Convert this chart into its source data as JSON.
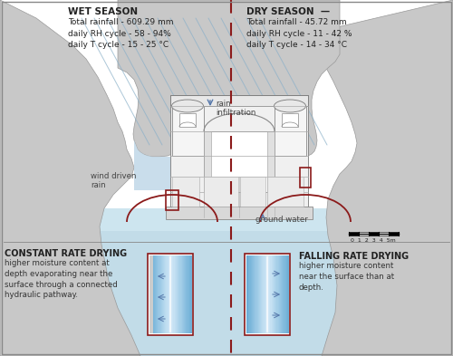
{
  "bg_color": "#ffffff",
  "wet_season_line1": "WET SEASON",
  "wet_season_line2": "Total rainfall - 609.29 mm\ndaily RH cycle - 58 - 94%\ndaily T cycle - 15 - 25 °C",
  "dry_season_line1": "DRY SEASON  —",
  "dry_season_line2": "Total rainfall - 45.72 mm\ndaily RH cycle - 11 - 42 %\ndaily T cycle - 14 - 34 °C",
  "rock_color": "#c8c8c8",
  "rock_edge_color": "#999999",
  "water_color_light": "#c8dfe8",
  "water_color_mid": "#b0cfd8",
  "rain_zone_color": "#c5dcea",
  "rain_line_color": "#8ab0c8",
  "dashed_line_color": "#8b1a1a",
  "box_color": "#8b1a1a",
  "arc_color": "#8b1a1a",
  "arrow_color": "#5577aa",
  "structure_white": "#ffffff",
  "structure_gray": "#e0e0e0",
  "structure_dark": "#666666",
  "structure_line": "#aaaaaa",
  "gradient_dark": "#6aadd5",
  "gradient_light": "#d6eaf8",
  "panel_border": "#8b1a1a",
  "scale_text": "0  1  2  3  4  5m",
  "wind_driven_text": "wind driven\nrain",
  "rain_infiltration_text": "rain\ninfiltration",
  "ground_water_text": "ground water",
  "constant_title": "CONSTANT RATE DRYING",
  "constant_body": "higher moisture content at\ndepth evaporating near the\nsurface through a connected\nhydraulic pathway.",
  "falling_title": "FALLING RATE DRYING",
  "falling_body": "higher moisture content\nnear the surface than at\ndepth."
}
